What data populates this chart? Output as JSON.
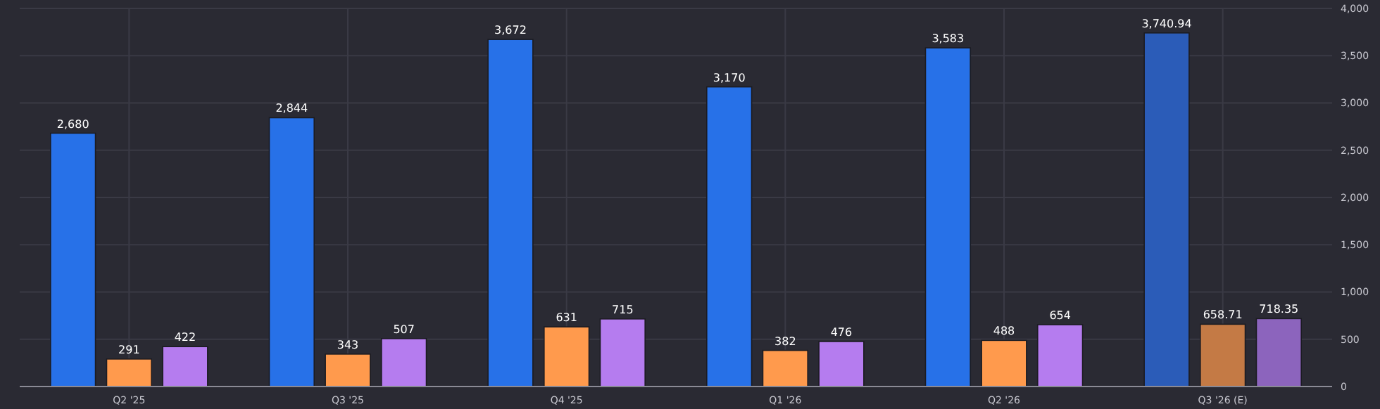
{
  "chart_data": {
    "type": "bar",
    "categories": [
      "Q2 '25",
      "Q3 '25",
      "Q4 '25",
      "Q1 '26",
      "Q2 '26",
      "Q3 '26 (E)"
    ],
    "series": [
      {
        "colors": [
          "#2771e8",
          "#2771e8",
          "#2771e8",
          "#2771e8",
          "#2771e8",
          "#2b5cb8"
        ],
        "values": [
          2680,
          2844,
          3672,
          3170,
          3583,
          3740.94
        ],
        "value_labels": [
          "2,680",
          "2,844",
          "3,672",
          "3,170",
          "3,583",
          "3,740.94"
        ]
      },
      {
        "colors": [
          "#ff9a4d",
          "#ff9a4d",
          "#ff9a4d",
          "#ff9a4d",
          "#ff9a4d",
          "#c47a45"
        ],
        "values": [
          291,
          343,
          631,
          382,
          488,
          658.71
        ],
        "value_labels": [
          "291",
          "343",
          "631",
          "382",
          "488",
          "658.71"
        ]
      },
      {
        "colors": [
          "#b57cef",
          "#b57cef",
          "#b57cef",
          "#b57cef",
          "#b57cef",
          "#8c64bd"
        ],
        "values": [
          422,
          507,
          715,
          476,
          654,
          718.35
        ],
        "value_labels": [
          "422",
          "507",
          "715",
          "476",
          "654",
          "718.35"
        ]
      }
    ],
    "ylim": [
      0,
      4000
    ],
    "yticks": [
      0,
      {
        "value": 500,
        "label": "500"
      },
      {
        "value": 1000,
        "label": "1,000"
      },
      {
        "value": 1500,
        "label": "1,500"
      },
      {
        "value": 2000,
        "label": "2,000"
      },
      {
        "value": 2500,
        "label": "2,500"
      },
      {
        "value": 3000,
        "label": "3,000"
      },
      {
        "value": 3500,
        "label": "3,500"
      },
      {
        "value": 4000,
        "label": "4,000"
      }
    ],
    "grid": true
  }
}
